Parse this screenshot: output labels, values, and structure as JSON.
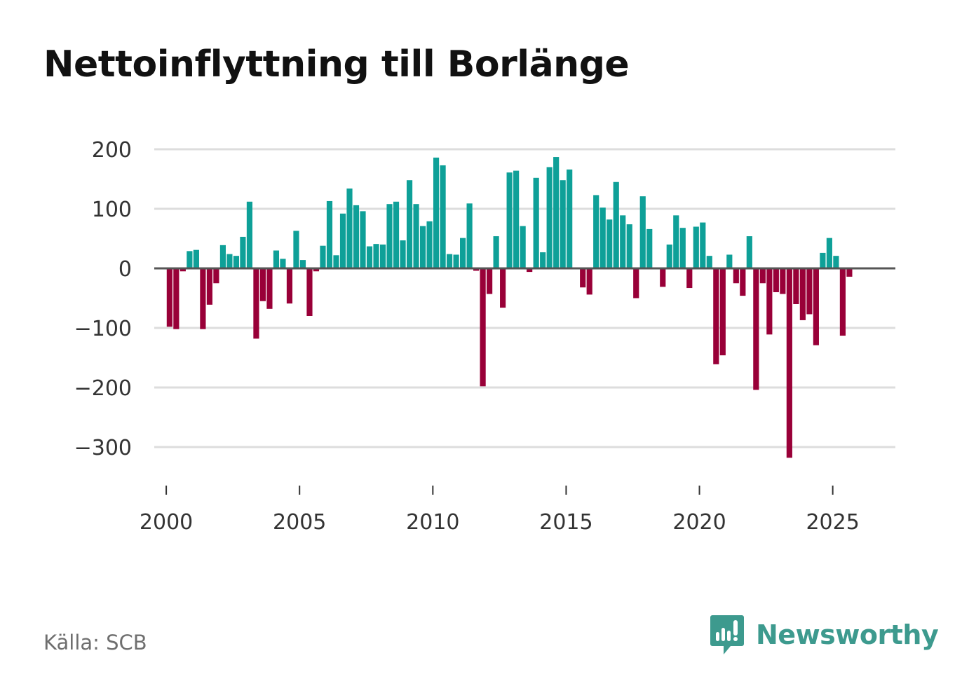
{
  "title": "Nettoinflyttning till Borlänge",
  "source": "Källa: SCB",
  "brand": {
    "name": "Newsworthy",
    "icon": "newsworthy-logo-icon"
  },
  "colors": {
    "positive": "#0ea098",
    "negative": "#990038",
    "grid": "#dddddd",
    "zero": "#555555",
    "brand": "#3d9a8e"
  },
  "chart_data": {
    "type": "bar",
    "title": "Nettoinflyttning till Borlänge",
    "xlabel": "",
    "ylabel": "",
    "ylim": [
      -360,
      200
    ],
    "xlim": [
      1999.55,
      2027.35
    ],
    "grid": true,
    "legend": "none",
    "yticks": [
      200,
      100,
      0,
      -100,
      -200,
      -300
    ],
    "ytick_labels": [
      "200",
      "100",
      "0",
      "−100",
      "−200",
      "−300"
    ],
    "xticks": [
      2000,
      2005,
      2010,
      2015,
      2020,
      2025
    ],
    "xtick_labels": [
      "2000",
      "2005",
      "2010",
      "2015",
      "2020",
      "2025"
    ],
    "period_start": 2000.0,
    "period_step": 0.25,
    "values": [
      -98,
      -102,
      -5,
      29,
      31,
      -102,
      -61,
      -25,
      39,
      24,
      21,
      53,
      112,
      -118,
      -55,
      -68,
      30,
      16,
      -59,
      63,
      14,
      -80,
      -5,
      38,
      113,
      22,
      92,
      134,
      106,
      96,
      37,
      41,
      40,
      108,
      112,
      47,
      148,
      108,
      71,
      79,
      186,
      173,
      24,
      23,
      51,
      109,
      -4,
      -198,
      -43,
      54,
      -66,
      161,
      164,
      71,
      -6,
      152,
      27,
      170,
      187,
      148,
      166,
      0,
      -32,
      -44,
      123,
      102,
      82,
      145,
      89,
      74,
      -50,
      121,
      66,
      0,
      -31,
      40,
      89,
      68,
      -33,
      70,
      77,
      21,
      -161,
      -146,
      23,
      -25,
      -46,
      54,
      -204,
      -25,
      -111,
      -40,
      -43,
      -318,
      -60,
      -87,
      -77,
      -129,
      26,
      51,
      21,
      -113,
      -14
    ]
  }
}
